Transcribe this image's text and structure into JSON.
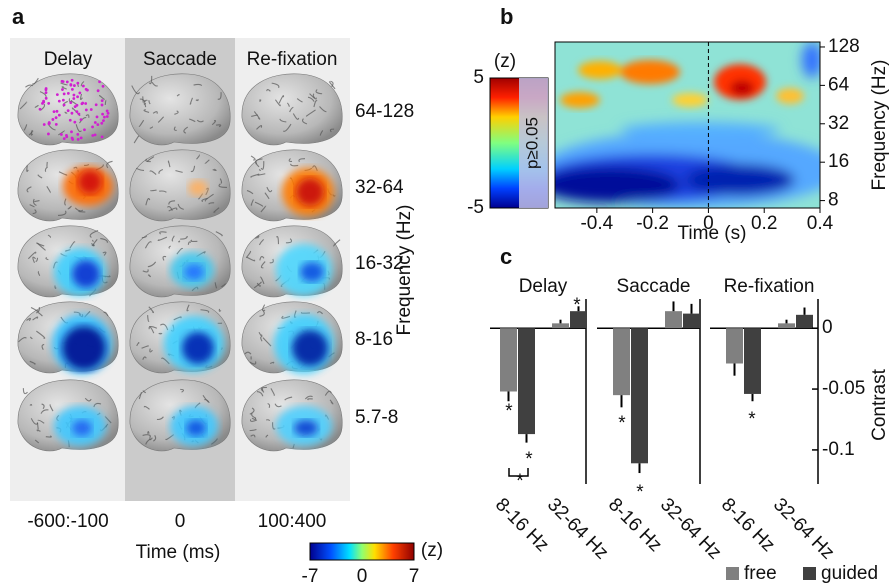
{
  "panel_a": {
    "label": "a",
    "columns": [
      "Delay",
      "Saccade",
      "Re-fixation"
    ],
    "rows": [
      "64-128",
      "32-64",
      "16-32",
      "8-16",
      "5.7-8"
    ],
    "row_axis_label": "Frequency (Hz)",
    "time_windows": [
      "-600:-100",
      "0",
      "100:400"
    ],
    "time_label": "Time (ms)",
    "colorbar": {
      "unit": "(z)",
      "ticks": [
        -7,
        0,
        7
      ]
    }
  },
  "panel_b": {
    "label": "b",
    "colorbar": {
      "unit": "(z)",
      "ticks": [
        5,
        -5
      ],
      "note": "p≥0.05"
    },
    "x_label": "Time (s)",
    "y_label": "Frequency (Hz)",
    "xlim": [
      -0.55,
      0.4
    ],
    "xticks": [
      -0.4,
      -0.2,
      0,
      0.2,
      0.4
    ],
    "ylim": [
      7,
      140
    ],
    "yticks": [
      8,
      16,
      32,
      64,
      128
    ],
    "log_y": true
  },
  "panel_c": {
    "label": "c",
    "y_label": "Contrast"
  },
  "chart_data": [
    {
      "type": "bar",
      "title": "Delay",
      "categories": [
        "8-16 Hz",
        "32-64 Hz"
      ],
      "series": [
        {
          "name": "free",
          "color": "#808080",
          "values": [
            -0.052,
            0.004
          ],
          "errors": [
            0.008,
            0.003
          ]
        },
        {
          "name": "guided",
          "color": "#404040",
          "values": [
            -0.087,
            0.014
          ],
          "errors": [
            0.007,
            0.004
          ]
        }
      ],
      "ylim": [
        -0.128,
        0.024
      ],
      "annotations": [
        "*",
        "*",
        "*",
        "*"
      ]
    },
    {
      "type": "bar",
      "title": "Saccade",
      "categories": [
        "8-16 Hz",
        "32-64 Hz"
      ],
      "series": [
        {
          "name": "free",
          "color": "#808080",
          "values": [
            -0.055,
            0.014
          ],
          "errors": [
            0.01,
            0.008
          ]
        },
        {
          "name": "guided",
          "color": "#404040",
          "values": [
            -0.111,
            0.012
          ],
          "errors": [
            0.008,
            0.008
          ]
        }
      ],
      "ylim": [
        -0.128,
        0.024
      ],
      "annotations": [
        "*",
        "*"
      ]
    },
    {
      "type": "bar",
      "title": "Re-fixation",
      "categories": [
        "8-16 Hz",
        "32-64 Hz"
      ],
      "series": [
        {
          "name": "free",
          "color": "#808080",
          "values": [
            -0.029,
            0.004
          ],
          "errors": [
            0.01,
            0.003
          ]
        },
        {
          "name": "guided",
          "color": "#404040",
          "values": [
            -0.054,
            0.011
          ],
          "errors": [
            0.006,
            0.006
          ]
        }
      ],
      "ylim": [
        -0.128,
        0.024
      ],
      "yticks": [
        0,
        -0.05,
        -0.1
      ],
      "annotations": [
        "*"
      ]
    }
  ]
}
